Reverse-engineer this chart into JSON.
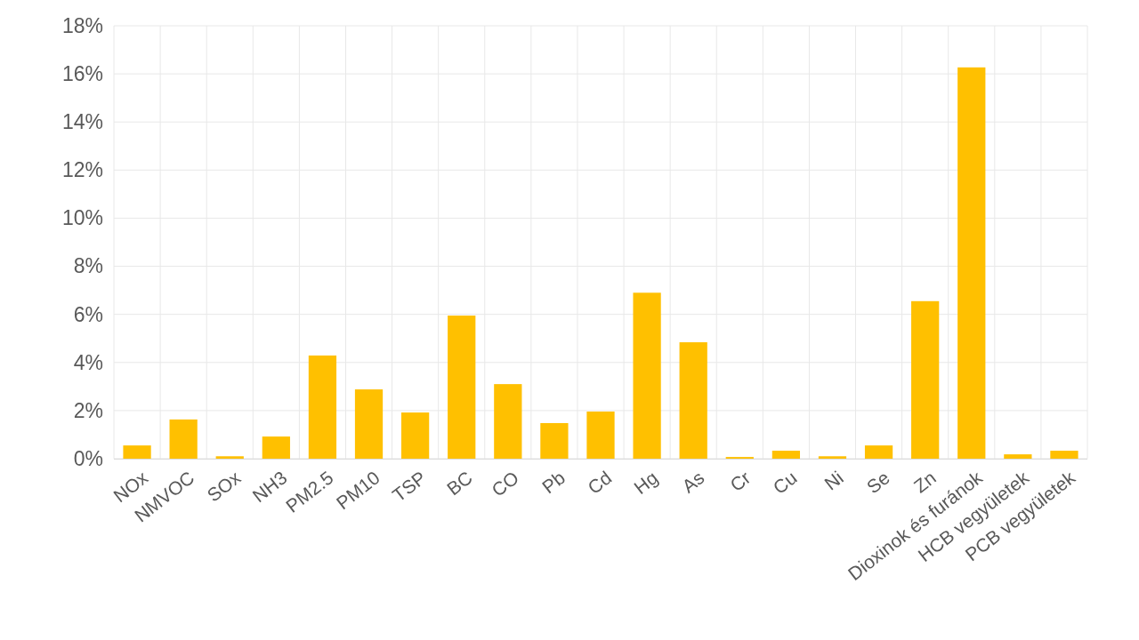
{
  "chart_data": {
    "type": "bar",
    "categories": [
      "NOx",
      "NMVOC",
      "SOx",
      "NH3",
      "PM2.5",
      "PM10",
      "TSP",
      "BC",
      "CO",
      "Pb",
      "Cd",
      "Hg",
      "As",
      "Cr",
      "Cu",
      "Ni",
      "Se",
      "Zn",
      "Dioxinok és furánok",
      "HCB vegyületek",
      "PCB vegyületek"
    ],
    "values": [
      0.55,
      1.63,
      0.1,
      0.92,
      4.29,
      2.88,
      1.92,
      5.95,
      3.1,
      1.48,
      1.96,
      6.9,
      4.84,
      0.07,
      0.33,
      0.1,
      0.55,
      6.55,
      16.27,
      0.18,
      0.33
    ],
    "color": "#ffc000",
    "ylim": [
      0,
      18
    ],
    "yticks": [
      {
        "value": 0,
        "label": "0%"
      },
      {
        "value": 2,
        "label": "2%"
      },
      {
        "value": 4,
        "label": "4%"
      },
      {
        "value": 6,
        "label": "6%"
      },
      {
        "value": 8,
        "label": "8%"
      },
      {
        "value": 10,
        "label": "10%"
      },
      {
        "value": 12,
        "label": "12%"
      },
      {
        "value": 14,
        "label": "14%"
      },
      {
        "value": 16,
        "label": "16%"
      },
      {
        "value": 18,
        "label": "18%"
      }
    ],
    "grid": true
  }
}
